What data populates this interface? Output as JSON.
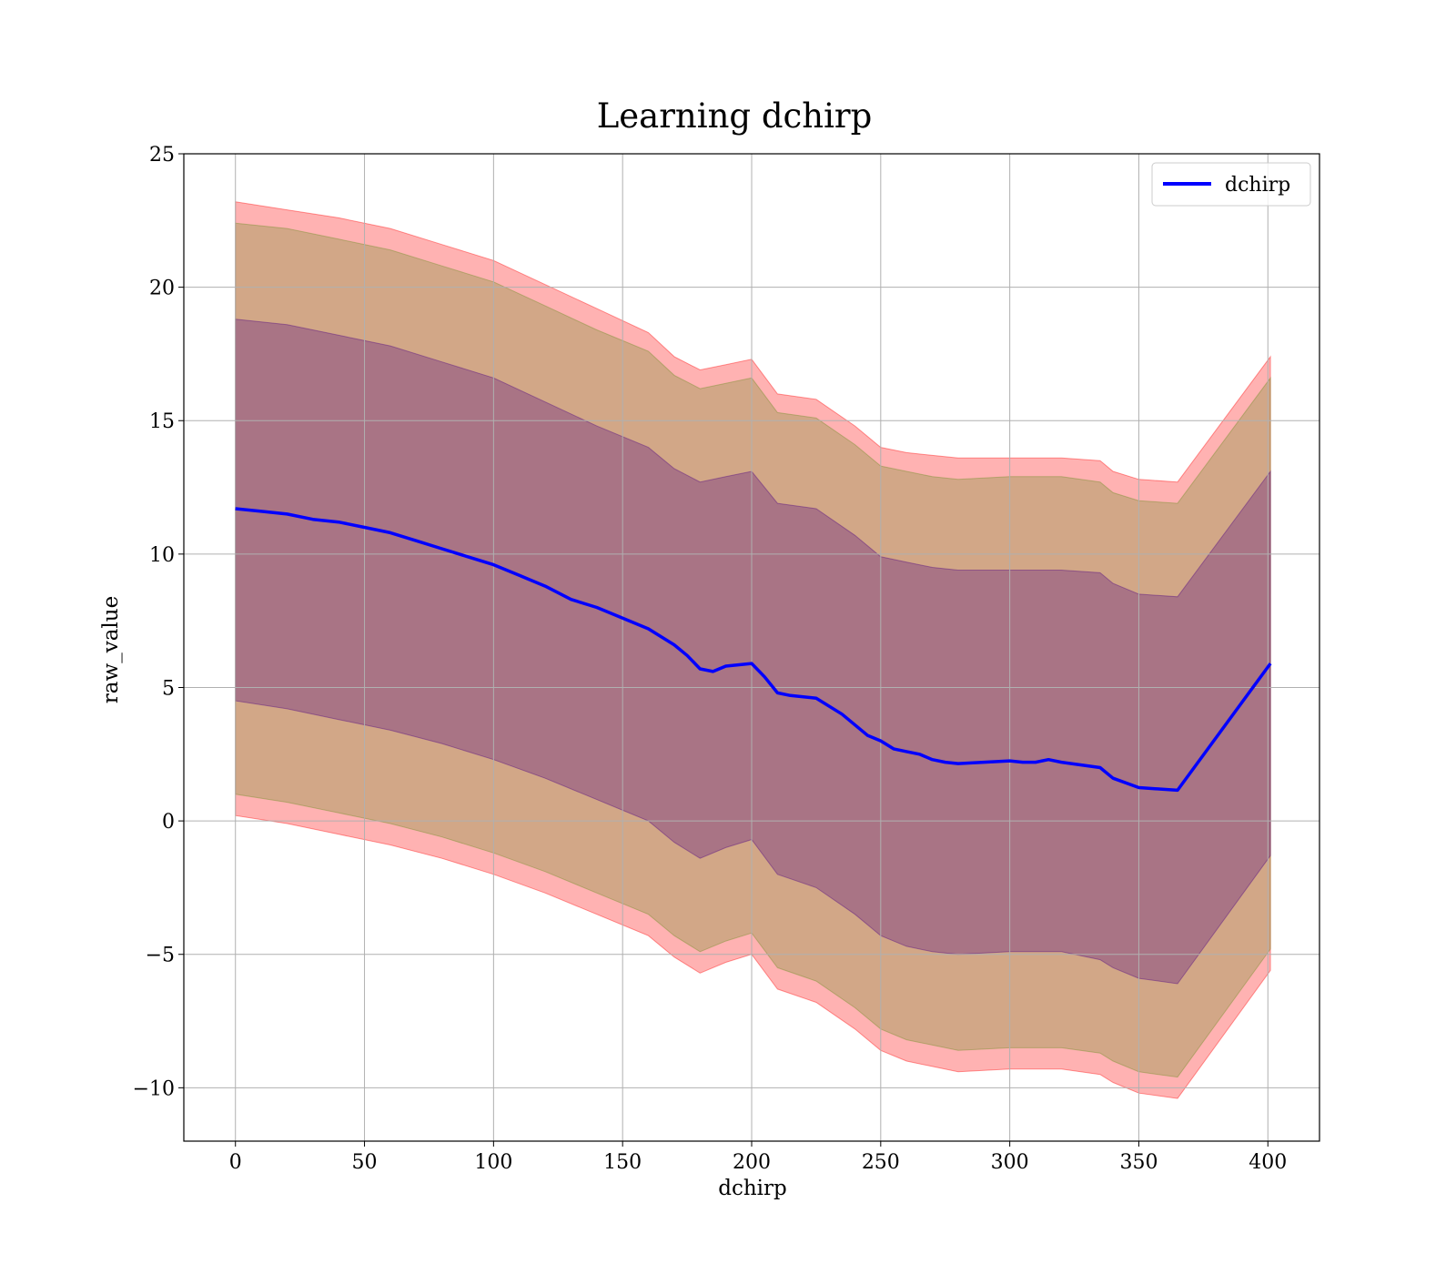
{
  "chart_data": {
    "type": "line",
    "title": "Learning dchirp",
    "xlabel": "dchirp",
    "ylabel": "raw_value",
    "xlim": [
      -20,
      420
    ],
    "ylim": [
      -12,
      25
    ],
    "x_ticks": [
      0,
      50,
      100,
      150,
      200,
      250,
      300,
      350,
      400
    ],
    "y_ticks": [
      -10,
      -5,
      0,
      5,
      10,
      15,
      20,
      25
    ],
    "x_tick_labels": [
      "0",
      "50",
      "100",
      "150",
      "200",
      "250",
      "300",
      "350",
      "400"
    ],
    "y_tick_labels": [
      "−10",
      "−5",
      "0",
      "5",
      "10",
      "15",
      "20",
      "25"
    ],
    "grid": true,
    "legend": {
      "position": "top-right",
      "entries": [
        "dchirp"
      ]
    },
    "series": [
      {
        "name": "dchirp",
        "color": "#0000ff",
        "x": [
          0,
          10,
          20,
          30,
          40,
          50,
          60,
          70,
          80,
          90,
          100,
          110,
          120,
          130,
          140,
          150,
          160,
          170,
          175,
          180,
          185,
          190,
          200,
          205,
          210,
          215,
          225,
          235,
          245,
          250,
          255,
          260,
          265,
          270,
          275,
          280,
          290,
          300,
          305,
          310,
          315,
          320,
          335,
          340,
          350,
          365,
          401
        ],
        "y": [
          11.7,
          11.6,
          11.5,
          11.3,
          11.2,
          11.0,
          10.8,
          10.5,
          10.2,
          9.9,
          9.6,
          9.2,
          8.8,
          8.3,
          8.0,
          7.6,
          7.2,
          6.6,
          6.2,
          5.7,
          5.6,
          5.8,
          5.9,
          5.4,
          4.8,
          4.7,
          4.6,
          4.0,
          3.2,
          3.0,
          2.7,
          2.6,
          2.5,
          2.3,
          2.2,
          2.15,
          2.2,
          2.25,
          2.2,
          2.2,
          2.3,
          2.2,
          2.0,
          1.6,
          1.25,
          1.15,
          5.9
        ]
      }
    ],
    "bands": [
      {
        "label": "",
        "color": "#ff0000",
        "opacity": 0.3,
        "x": [
          0,
          20,
          40,
          60,
          80,
          100,
          120,
          140,
          160,
          170,
          180,
          190,
          200,
          210,
          225,
          240,
          250,
          260,
          270,
          280,
          300,
          320,
          335,
          340,
          350,
          365,
          401
        ],
        "upper": [
          23.2,
          22.9,
          22.6,
          22.2,
          21.6,
          21.0,
          20.1,
          19.2,
          18.3,
          17.4,
          16.9,
          17.1,
          17.3,
          16.0,
          15.8,
          14.8,
          14.0,
          13.8,
          13.7,
          13.6,
          13.6,
          13.6,
          13.5,
          13.1,
          12.8,
          12.7,
          17.4
        ],
        "lower": [
          0.2,
          -0.1,
          -0.5,
          -0.9,
          -1.4,
          -2.0,
          -2.7,
          -3.5,
          -4.3,
          -5.1,
          -5.7,
          -5.3,
          -5.0,
          -6.3,
          -6.8,
          -7.8,
          -8.6,
          -9.0,
          -9.2,
          -9.4,
          -9.3,
          -9.3,
          -9.5,
          -9.8,
          -10.2,
          -10.4,
          -5.6
        ]
      },
      {
        "label": "",
        "color": "#6b8e23",
        "opacity": 0.3,
        "x": [
          0,
          20,
          40,
          60,
          80,
          100,
          120,
          140,
          160,
          170,
          180,
          190,
          200,
          210,
          225,
          240,
          250,
          260,
          270,
          280,
          300,
          320,
          335,
          340,
          350,
          365,
          401
        ],
        "upper": [
          22.4,
          22.2,
          21.8,
          21.4,
          20.8,
          20.2,
          19.3,
          18.4,
          17.6,
          16.7,
          16.2,
          16.4,
          16.6,
          15.3,
          15.1,
          14.1,
          13.3,
          13.1,
          12.9,
          12.8,
          12.9,
          12.9,
          12.7,
          12.3,
          12.0,
          11.9,
          16.6
        ],
        "lower": [
          1.0,
          0.7,
          0.3,
          -0.1,
          -0.6,
          -1.2,
          -1.9,
          -2.7,
          -3.5,
          -4.3,
          -4.9,
          -4.5,
          -4.2,
          -5.5,
          -6.0,
          -7.0,
          -7.8,
          -8.2,
          -8.4,
          -8.6,
          -8.5,
          -8.5,
          -8.7,
          -9.0,
          -9.4,
          -9.6,
          -4.8
        ]
      },
      {
        "label": "",
        "color": "#4b0082",
        "opacity": 0.3,
        "x": [
          0,
          20,
          40,
          60,
          80,
          100,
          120,
          140,
          160,
          170,
          180,
          190,
          200,
          210,
          225,
          240,
          250,
          260,
          270,
          280,
          300,
          320,
          335,
          340,
          350,
          365,
          401
        ],
        "upper": [
          18.8,
          18.6,
          18.2,
          17.8,
          17.2,
          16.6,
          15.7,
          14.8,
          14.0,
          13.2,
          12.7,
          12.9,
          13.1,
          11.9,
          11.7,
          10.7,
          9.9,
          9.7,
          9.5,
          9.4,
          9.4,
          9.4,
          9.3,
          8.9,
          8.5,
          8.4,
          13.1
        ],
        "lower": [
          4.5,
          4.2,
          3.8,
          3.4,
          2.9,
          2.3,
          1.6,
          0.8,
          0.0,
          -0.8,
          -1.4,
          -1.0,
          -0.7,
          -2.0,
          -2.5,
          -3.5,
          -4.3,
          -4.7,
          -4.9,
          -5.0,
          -4.9,
          -4.9,
          -5.2,
          -5.5,
          -5.9,
          -6.1,
          -1.3
        ]
      }
    ]
  }
}
